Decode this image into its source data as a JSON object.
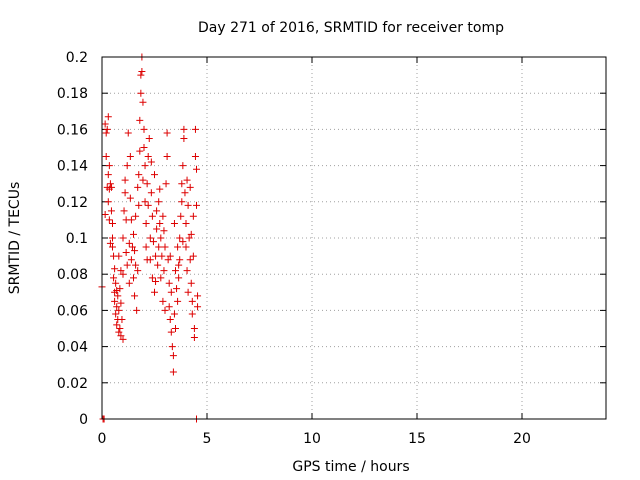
{
  "chart_data": {
    "type": "scatter",
    "title": "Day 271 of 2016, SRMTID for receiver tomp",
    "xlabel": "GPS time / hours",
    "ylabel": "SRMTID / TECUs",
    "xlim": [
      0,
      24
    ],
    "ylim": [
      0,
      0.2
    ],
    "xticks": [
      "0",
      "5",
      "10",
      "15",
      "20"
    ],
    "yticks": [
      "0",
      "0.02",
      "0.04",
      "0.06",
      "0.08",
      "0.1",
      "0.12",
      "0.14",
      "0.16",
      "0.18",
      "0.2"
    ],
    "grid": true,
    "marker": "+",
    "colors": {
      "series": "#dd0000",
      "axis": "#000000",
      "grid": "#a0a0a0"
    },
    "series": [
      {
        "points": [
          [
            0.0,
            0.073
          ],
          [
            0.05,
            0.0
          ],
          [
            0.1,
            0.0
          ],
          [
            0.15,
            0.113
          ],
          [
            0.15,
            0.163
          ],
          [
            0.2,
            0.158
          ],
          [
            0.2,
            0.145
          ],
          [
            0.25,
            0.16
          ],
          [
            0.25,
            0.128
          ],
          [
            0.3,
            0.167
          ],
          [
            0.3,
            0.135
          ],
          [
            0.3,
            0.12
          ],
          [
            0.35,
            0.14
          ],
          [
            0.35,
            0.11
          ],
          [
            0.4,
            0.13
          ],
          [
            0.4,
            0.097
          ],
          [
            0.45,
            0.128
          ],
          [
            0.45,
            0.115
          ],
          [
            0.5,
            0.108
          ],
          [
            0.5,
            0.1
          ],
          [
            0.55,
            0.09
          ],
          [
            0.55,
            0.078
          ],
          [
            0.6,
            0.07
          ],
          [
            0.6,
            0.065
          ],
          [
            0.65,
            0.058
          ],
          [
            0.65,
            0.075
          ],
          [
            0.7,
            0.062
          ],
          [
            0.7,
            0.052
          ],
          [
            0.75,
            0.068
          ],
          [
            0.75,
            0.055
          ],
          [
            0.8,
            0.048
          ],
          [
            0.8,
            0.06
          ],
          [
            0.85,
            0.072
          ],
          [
            0.85,
            0.05
          ],
          [
            0.9,
            0.064
          ],
          [
            0.9,
            0.046
          ],
          [
            0.95,
            0.055
          ],
          [
            1.0,
            0.08
          ],
          [
            1.0,
            0.044
          ],
          [
            0.35,
            0.127
          ],
          [
            0.5,
            0.095
          ],
          [
            0.6,
            0.083
          ],
          [
            0.7,
            0.071
          ],
          [
            0.8,
            0.09
          ],
          [
            0.9,
            0.082
          ],
          [
            1.0,
            0.1
          ],
          [
            1.05,
            0.115
          ],
          [
            1.1,
            0.125
          ],
          [
            1.1,
            0.132
          ],
          [
            1.15,
            0.092
          ],
          [
            1.2,
            0.085
          ],
          [
            1.2,
            0.14
          ],
          [
            1.25,
            0.158
          ],
          [
            1.3,
            0.097
          ],
          [
            1.3,
            0.075
          ],
          [
            1.35,
            0.145
          ],
          [
            1.4,
            0.11
          ],
          [
            1.4,
            0.088
          ],
          [
            1.45,
            0.095
          ],
          [
            1.5,
            0.078
          ],
          [
            1.5,
            0.102
          ],
          [
            1.55,
            0.068
          ],
          [
            1.6,
            0.112
          ],
          [
            1.6,
            0.085
          ],
          [
            1.65,
            0.06
          ],
          [
            1.7,
            0.082
          ],
          [
            1.7,
            0.128
          ],
          [
            1.75,
            0.135
          ],
          [
            1.8,
            0.148
          ],
          [
            1.8,
            0.165
          ],
          [
            1.85,
            0.18
          ],
          [
            1.85,
            0.19
          ],
          [
            1.9,
            0.2
          ],
          [
            1.9,
            0.192
          ],
          [
            1.95,
            0.175
          ],
          [
            2.0,
            0.16
          ],
          [
            2.0,
            0.15
          ],
          [
            2.05,
            0.14
          ],
          [
            2.05,
            0.12
          ],
          [
            2.1,
            0.108
          ],
          [
            2.1,
            0.095
          ],
          [
            2.15,
            0.13
          ],
          [
            2.2,
            0.118
          ],
          [
            2.2,
            0.145
          ],
          [
            2.25,
            0.155
          ],
          [
            2.3,
            0.1
          ],
          [
            2.3,
            0.088
          ],
          [
            2.35,
            0.125
          ],
          [
            2.4,
            0.112
          ],
          [
            2.4,
            0.078
          ],
          [
            2.45,
            0.098
          ],
          [
            2.5,
            0.135
          ],
          [
            2.5,
            0.07
          ],
          [
            2.55,
            0.09
          ],
          [
            2.6,
            0.105
          ],
          [
            2.6,
            0.115
          ],
          [
            2.65,
            0.085
          ],
          [
            2.7,
            0.095
          ],
          [
            2.7,
            0.12
          ],
          [
            2.75,
            0.108
          ],
          [
            2.8,
            0.1
          ],
          [
            2.8,
            0.078
          ],
          [
            2.85,
            0.09
          ],
          [
            2.9,
            0.112
          ],
          [
            2.9,
            0.065
          ],
          [
            2.95,
            0.082
          ],
          [
            3.0,
            0.06
          ],
          [
            3.0,
            0.095
          ],
          [
            1.15,
            0.11
          ],
          [
            1.35,
            0.122
          ],
          [
            1.55,
            0.093
          ],
          [
            1.75,
            0.118
          ],
          [
            1.95,
            0.132
          ],
          [
            2.15,
            0.088
          ],
          [
            2.35,
            0.142
          ],
          [
            2.55,
            0.076
          ],
          [
            2.75,
            0.127
          ],
          [
            2.95,
            0.104
          ],
          [
            3.05,
            0.13
          ],
          [
            3.1,
            0.158
          ],
          [
            3.1,
            0.145
          ],
          [
            3.15,
            0.088
          ],
          [
            3.2,
            0.075
          ],
          [
            3.2,
            0.062
          ],
          [
            3.25,
            0.055
          ],
          [
            3.3,
            0.07
          ],
          [
            3.3,
            0.048
          ],
          [
            3.35,
            0.04
          ],
          [
            3.4,
            0.035
          ],
          [
            3.4,
            0.026
          ],
          [
            3.45,
            0.058
          ],
          [
            3.5,
            0.05
          ],
          [
            3.5,
            0.082
          ],
          [
            3.55,
            0.072
          ],
          [
            3.6,
            0.095
          ],
          [
            3.6,
            0.065
          ],
          [
            3.65,
            0.078
          ],
          [
            3.7,
            0.1
          ],
          [
            3.7,
            0.088
          ],
          [
            3.75,
            0.112
          ],
          [
            3.8,
            0.12
          ],
          [
            3.8,
            0.13
          ],
          [
            3.85,
            0.14
          ],
          [
            3.9,
            0.16
          ],
          [
            3.9,
            0.155
          ],
          [
            3.95,
            0.125
          ],
          [
            4.0,
            0.108
          ],
          [
            4.0,
            0.095
          ],
          [
            4.05,
            0.082
          ],
          [
            4.1,
            0.07
          ],
          [
            4.1,
            0.118
          ],
          [
            4.15,
            0.1
          ],
          [
            4.2,
            0.128
          ],
          [
            4.2,
            0.088
          ],
          [
            4.25,
            0.075
          ],
          [
            4.3,
            0.065
          ],
          [
            4.3,
            0.058
          ],
          [
            4.35,
            0.09
          ],
          [
            4.4,
            0.05
          ],
          [
            4.4,
            0.045
          ],
          [
            4.45,
            0.16
          ],
          [
            4.45,
            0.145
          ],
          [
            4.5,
            0.138
          ],
          [
            4.5,
            0.118
          ],
          [
            4.55,
            0.062
          ],
          [
            4.55,
            0.068
          ],
          [
            3.25,
            0.09
          ],
          [
            3.45,
            0.108
          ],
          [
            3.65,
            0.085
          ],
          [
            3.85,
            0.098
          ],
          [
            4.05,
            0.132
          ],
          [
            4.25,
            0.102
          ],
          [
            4.35,
            0.112
          ],
          [
            4.5,
            0.0
          ]
        ]
      }
    ]
  }
}
